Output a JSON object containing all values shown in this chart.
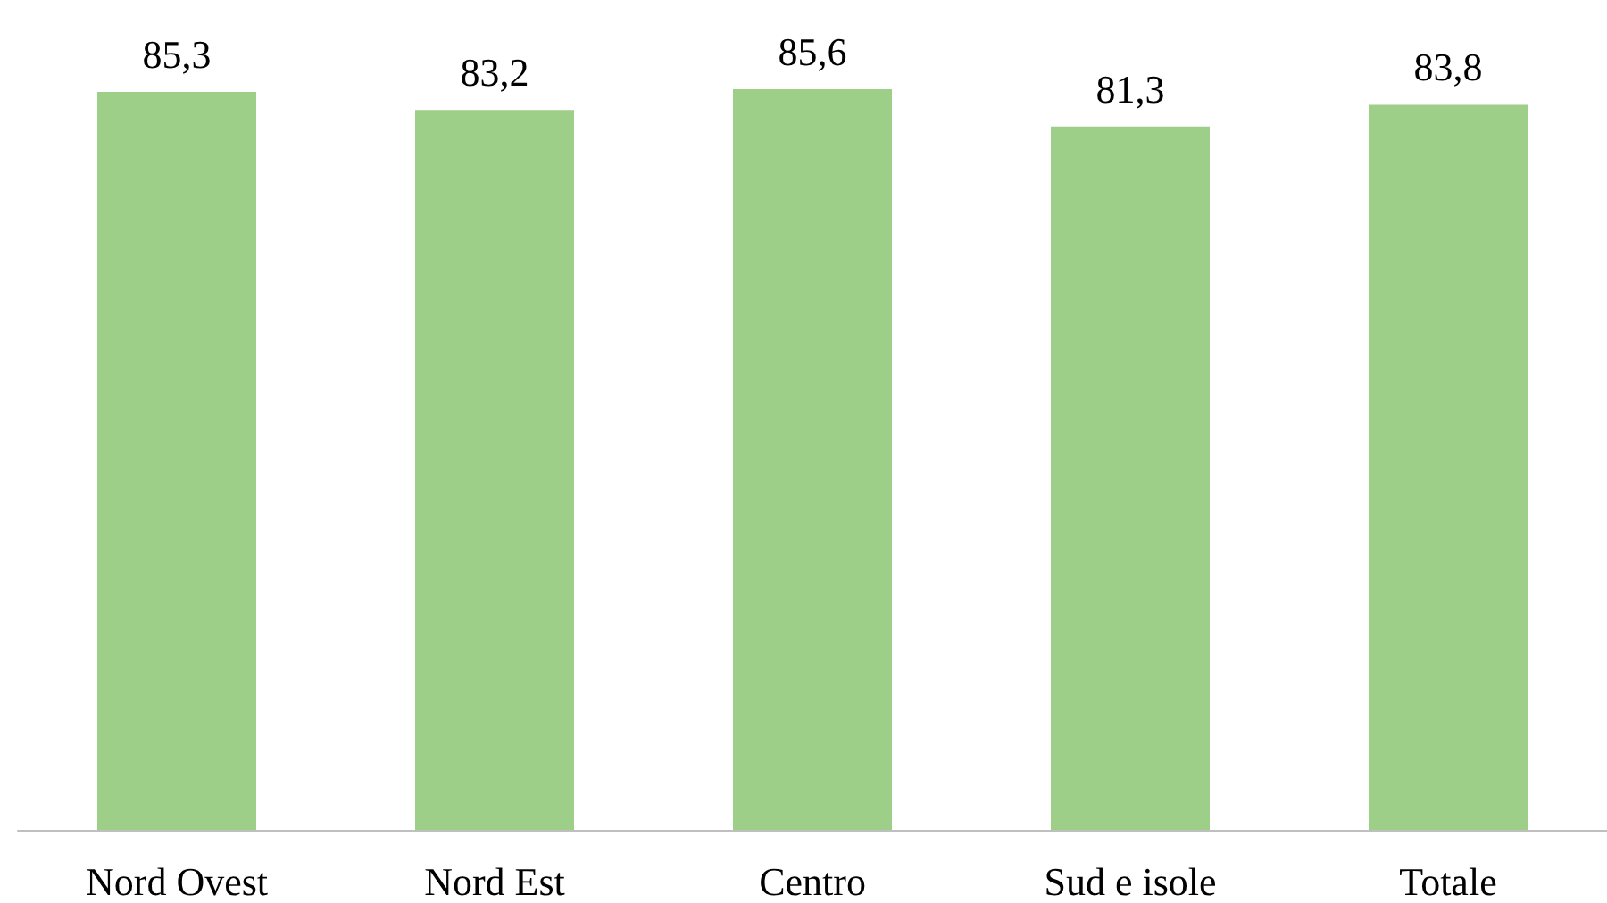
{
  "chart_data": {
    "type": "bar",
    "categories": [
      "Nord Ovest",
      "Nord Est",
      "Centro",
      "Sud e isole",
      "Totale"
    ],
    "values": [
      85.3,
      83.2,
      85.6,
      81.3,
      83.8
    ],
    "value_labels": [
      "85,3",
      "83,2",
      "85,6",
      "81,3",
      "83,8"
    ],
    "color": "#9dcf88"
  }
}
